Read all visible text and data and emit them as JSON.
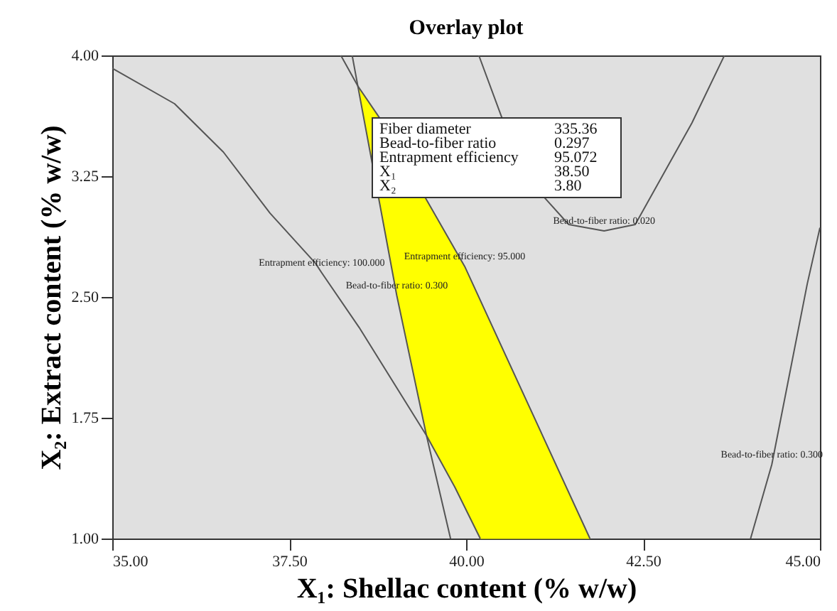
{
  "chart_data": {
    "type": "line",
    "title": "Overlay plot",
    "xlabel": "X₁: Shellac content (% w/w)",
    "ylabel": "X₂: Extract content (% w/w)",
    "xlim": [
      35,
      45
    ],
    "ylim": [
      1,
      4
    ],
    "xticks": [
      {
        "value": 35,
        "label": "35.00"
      },
      {
        "value": 37.5,
        "label": "37.50"
      },
      {
        "value": 40,
        "label": "40.00"
      },
      {
        "value": 42.5,
        "label": "42.50"
      },
      {
        "value": 45,
        "label": "45.00"
      }
    ],
    "yticks": [
      {
        "value": 1,
        "label": "1.00"
      },
      {
        "value": 1.75,
        "label": "1.75"
      },
      {
        "value": 2.5,
        "label": "2.50"
      },
      {
        "value": 3.25,
        "label": "3.25"
      },
      {
        "value": 4,
        "label": "4.00"
      }
    ],
    "grid": false,
    "marker": "none",
    "line_style": "solid",
    "series": [
      {
        "type": "area",
        "color": "#ffff00",
        "x": [
          38.47,
          39.02,
          39.44,
          39.84,
          40.2,
          41.75,
          39.98,
          38.78
        ],
        "values": [
          3.81,
          2.51,
          1.64,
          1.32,
          1.0,
          1.0,
          2.69,
          3.61
        ]
      },
      {
        "color": "#555555",
        "x": [
          35.0,
          35.88,
          36.57,
          37.23,
          37.87,
          37.96,
          38.49,
          39.44,
          39.84,
          40.2
        ],
        "values": [
          3.92,
          3.7,
          3.4,
          3.02,
          2.71,
          2.65,
          2.31,
          1.64,
          1.32,
          1.0
        ]
      },
      {
        "color": "#555555",
        "x": [
          38.39,
          38.47,
          39.02,
          39.44,
          39.78
        ],
        "values": [
          4.0,
          3.81,
          2.51,
          1.64,
          1.0
        ]
      },
      {
        "color": "#555555",
        "x": [
          38.23,
          38.47,
          38.78,
          39.98,
          41.75
        ],
        "values": [
          4.0,
          3.81,
          3.61,
          2.69,
          1.0
        ]
      },
      {
        "color": "#555555",
        "x": [
          40.18,
          40.5,
          41.08,
          41.45,
          41.95,
          42.39,
          43.19,
          43.65
        ],
        "values": [
          4.0,
          3.62,
          3.13,
          2.95,
          2.91,
          2.95,
          3.58,
          4.0
        ]
      },
      {
        "color": "#555555",
        "x": [
          45.0,
          44.82,
          44.32,
          44.02
        ],
        "values": [
          2.93,
          2.58,
          1.46,
          1.0
        ]
      }
    ],
    "annotations": [
      {
        "text": "Entrapment efficiency: 100.000",
        "x": 37.96,
        "y": 2.65
      },
      {
        "text": "Entrapment efficiency: 95.000",
        "x": 39.98,
        "y": 2.69
      },
      {
        "text": "Bead-to-fiber ratio: 0.300",
        "x": 39.02,
        "y": 2.51
      },
      {
        "text": "Bead-to-fiber ratio: 0.020",
        "x": 41.95,
        "y": 2.91
      },
      {
        "text": "Bead-to-fiber ratio: 0.300",
        "x": 44.32,
        "y": 1.46
      },
      "Fiber diameter 335.36",
      "Bead-to-fiber  ratio 0.297",
      "Entrapment efficiency 95.072",
      "X₁ 38.50",
      "X₂ 3.80"
    ]
  }
}
